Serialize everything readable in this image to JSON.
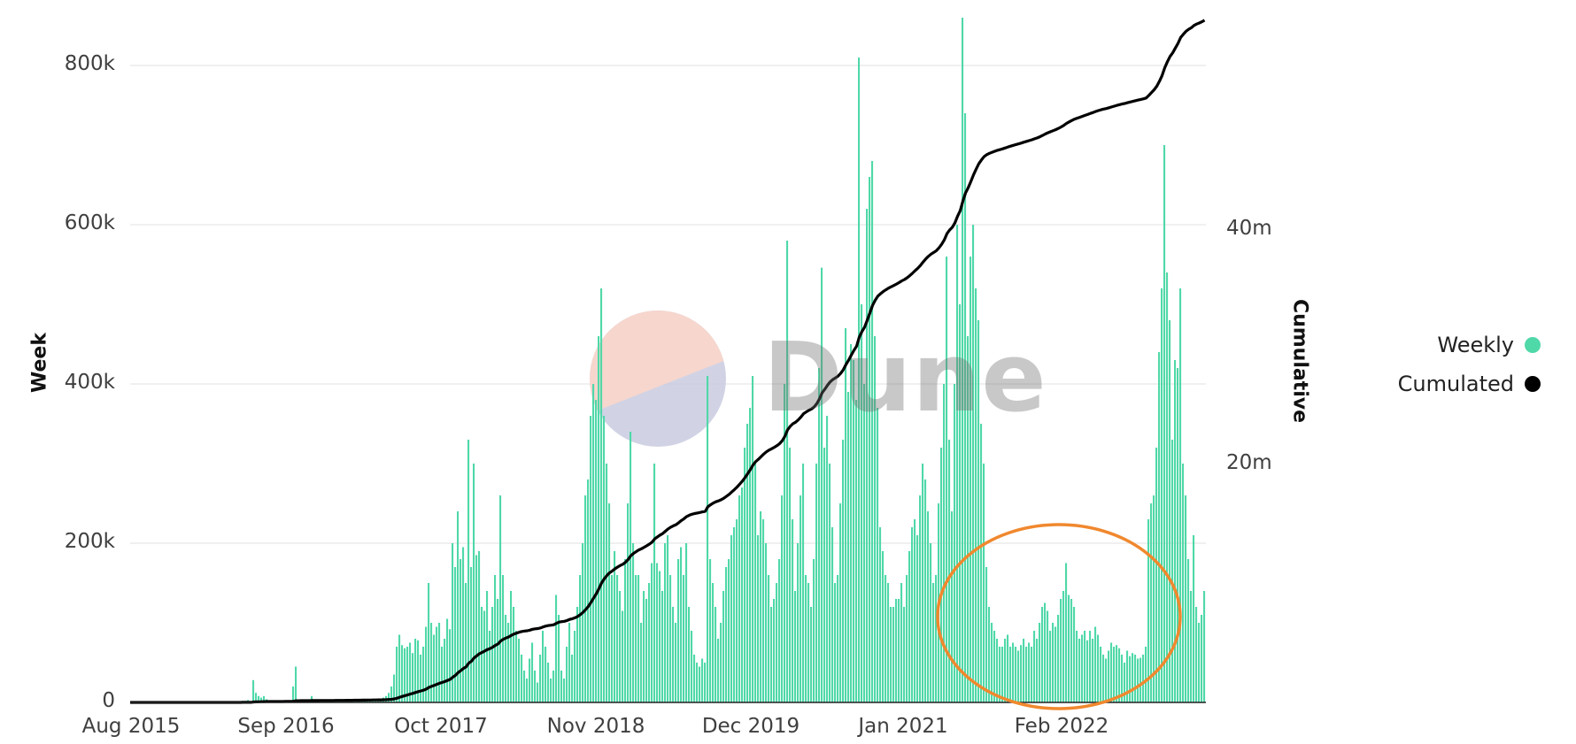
{
  "chart_data": {
    "type": "bar+line",
    "title": "",
    "watermark": "Dune",
    "x_ticks": [
      "Aug 2015",
      "Sep 2016",
      "Oct 2017",
      "Nov 2018",
      "Dec 2019",
      "Jan 2021",
      "Feb 2022"
    ],
    "x_tick_weeks": [
      0,
      57,
      114,
      171,
      228,
      284,
      342
    ],
    "y_left": {
      "label": "Week",
      "ticks": [
        "0",
        "200k",
        "400k",
        "600k",
        "800k"
      ],
      "tick_values": [
        0,
        200000,
        400000,
        600000,
        800000
      ],
      "range": [
        0,
        870000
      ]
    },
    "y_right": {
      "label": "Cumulative",
      "ticks": [
        "20m",
        "40m"
      ],
      "tick_values": [
        20000000,
        40000000
      ],
      "range": [
        0,
        59000000
      ]
    },
    "grid": true,
    "legend_position": "right",
    "series": [
      {
        "name": "Weekly",
        "type": "bar",
        "color": "#4fd8a8",
        "unit": "thousands",
        "values": [
          0,
          0,
          0,
          0,
          0,
          0,
          0,
          0,
          0,
          0,
          0,
          0,
          0,
          0,
          0,
          0,
          0,
          0,
          0,
          0,
          0,
          0,
          0,
          0,
          0,
          0,
          0,
          0,
          0,
          0,
          0,
          0,
          0,
          0,
          0,
          0,
          0,
          0,
          0,
          0,
          1,
          1,
          2,
          2,
          3,
          1,
          28,
          12,
          8,
          6,
          8,
          4,
          2,
          1,
          1,
          1,
          1,
          1,
          1,
          1,
          2,
          20,
          45,
          3,
          2,
          1,
          1,
          1,
          8,
          2,
          1,
          1,
          1,
          2,
          1,
          1,
          2,
          2,
          2,
          1,
          2,
          2,
          3,
          3,
          3,
          2,
          3,
          3,
          4,
          4,
          3,
          4,
          4,
          5,
          5,
          6,
          8,
          12,
          20,
          35,
          70,
          85,
          72,
          68,
          70,
          75,
          62,
          80,
          78,
          60,
          70,
          95,
          150,
          100,
          85,
          95,
          100,
          70,
          80,
          105,
          92,
          200,
          170,
          240,
          180,
          195,
          150,
          330,
          170,
          300,
          185,
          190,
          120,
          115,
          140,
          90,
          120,
          160,
          130,
          260,
          160,
          110,
          100,
          140,
          120,
          90,
          80,
          60,
          40,
          30,
          55,
          75,
          40,
          25,
          60,
          90,
          70,
          50,
          30,
          40,
          135,
          110,
          40,
          30,
          70,
          100,
          60,
          90,
          120,
          160,
          200,
          260,
          280,
          360,
          400,
          380,
          460,
          520,
          360,
          300,
          250,
          160,
          190,
          160,
          140,
          115,
          180,
          250,
          340,
          200,
          160,
          160,
          100,
          140,
          130,
          150,
          175,
          300,
          175,
          165,
          140,
          200,
          210,
          160,
          120,
          100,
          180,
          195,
          160,
          200,
          120,
          90,
          60,
          50,
          45,
          55,
          50,
          410,
          180,
          150,
          120,
          80,
          100,
          140,
          170,
          180,
          210,
          220,
          230,
          260,
          270,
          320,
          350,
          370,
          410,
          300,
          210,
          240,
          230,
          200,
          160,
          120,
          130,
          150,
          180,
          260,
          400,
          580,
          320,
          230,
          140,
          200,
          260,
          300,
          160,
          150,
          120,
          180,
          300,
          420,
          546,
          320,
          360,
          300,
          220,
          150,
          160,
          250,
          330,
          470,
          390,
          450,
          430,
          380,
          810,
          500,
          400,
          620,
          660,
          680,
          460,
          370,
          220,
          190,
          160,
          150,
          120,
          120,
          130,
          130,
          150,
          120,
          160,
          190,
          220,
          230,
          210,
          260,
          300,
          280,
          240,
          200,
          150,
          160,
          250,
          320,
          400,
          560,
          330,
          240,
          400,
          600,
          500,
          860,
          740,
          460,
          560,
          600,
          520,
          480,
          350,
          300,
          170,
          120,
          100,
          90,
          80,
          70,
          70,
          80,
          85,
          70,
          75,
          70,
          65,
          72,
          80,
          70,
          75,
          70,
          90,
          80,
          100,
          120,
          125,
          115,
          90,
          100,
          95,
          110,
          130,
          140,
          175,
          135,
          130,
          120,
          90,
          80,
          85,
          90,
          78,
          90,
          80,
          95,
          85,
          70,
          60,
          55,
          65,
          75,
          70,
          72,
          68,
          60,
          50,
          65,
          58,
          62,
          60,
          55,
          56,
          60,
          70,
          230,
          250,
          260,
          320,
          440,
          520,
          700,
          540,
          480,
          330,
          430,
          420,
          520,
          300,
          260,
          180,
          140,
          210,
          120,
          100,
          110,
          140
        ]
      },
      {
        "name": "Cumulated",
        "type": "line",
        "color": "#000000",
        "unit": "millions",
        "checkpoints": [
          {
            "x": "Aug 2015",
            "value": 0.0
          },
          {
            "x": "Sep 2016",
            "value": 0.2
          },
          {
            "x": "Oct 2017",
            "value": 2.0
          },
          {
            "x": "Nov 2018",
            "value": 9.5
          },
          {
            "x": "Dec 2019",
            "value": 19.5
          },
          {
            "x": "Jan 2021",
            "value": 38.0
          },
          {
            "x": "Feb 2022",
            "value": 50.4
          },
          {
            "x": "end",
            "value": 58.2
          }
        ]
      }
    ],
    "annotations": [
      {
        "type": "ellipse",
        "color": "#f0882e",
        "description": "orange circle highlighting the low-activity period around Feb 2022"
      }
    ]
  },
  "axis": {
    "left_title": "Week",
    "right_title": "Cumulative",
    "left_ticks": [
      "0",
      "200k",
      "400k",
      "600k",
      "800k"
    ],
    "right_ticks": [
      "20m",
      "40m"
    ],
    "x_ticks": [
      "Aug 2015",
      "Sep 2016",
      "Oct 2017",
      "Nov 2018",
      "Dec 2019",
      "Jan 2021",
      "Feb 2022"
    ]
  },
  "legend": {
    "items": [
      {
        "label": "Weekly",
        "color": "#4fd8a8"
      },
      {
        "label": "Cumulated",
        "color": "#000000"
      }
    ]
  },
  "watermark": {
    "text": "Dune"
  },
  "colors": {
    "bar": "#4fd8a8",
    "line": "#000000",
    "grid": "#ececec",
    "annotation": "#f0882e"
  }
}
